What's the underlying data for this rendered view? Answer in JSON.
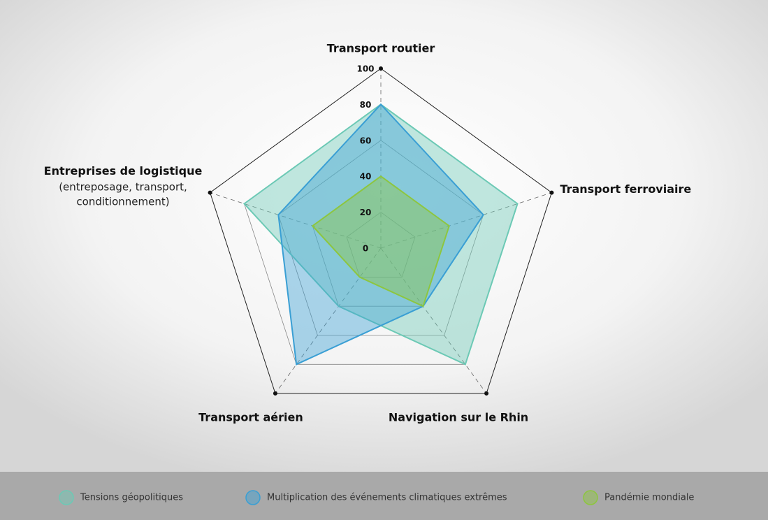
{
  "chart_data": {
    "type": "radar",
    "categories": [
      "Transport routier",
      "Transport ferroviaire",
      "Navigation sur le Rhin",
      "Transport aérien",
      "Entreprises de logistique"
    ],
    "category_notes": [
      null,
      null,
      null,
      null,
      "(entreposage, transport, conditionnement)"
    ],
    "series": [
      {
        "name": "Tensions géopolitiques",
        "color": "#6cc9b5",
        "values": [
          80,
          80,
          80,
          40,
          80
        ]
      },
      {
        "name": "Multiplication des événements climatiques extrêmes",
        "color": "#3a9fd4",
        "values": [
          80,
          60,
          40,
          80,
          60
        ]
      },
      {
        "name": "Pandémie mondiale",
        "color": "#8dc63f",
        "values": [
          40,
          40,
          40,
          20,
          40
        ]
      }
    ],
    "ylim": [
      0,
      100
    ],
    "yticks": [
      0,
      20,
      40,
      60,
      80,
      100
    ],
    "grid": true,
    "legend": "bottom"
  }
}
